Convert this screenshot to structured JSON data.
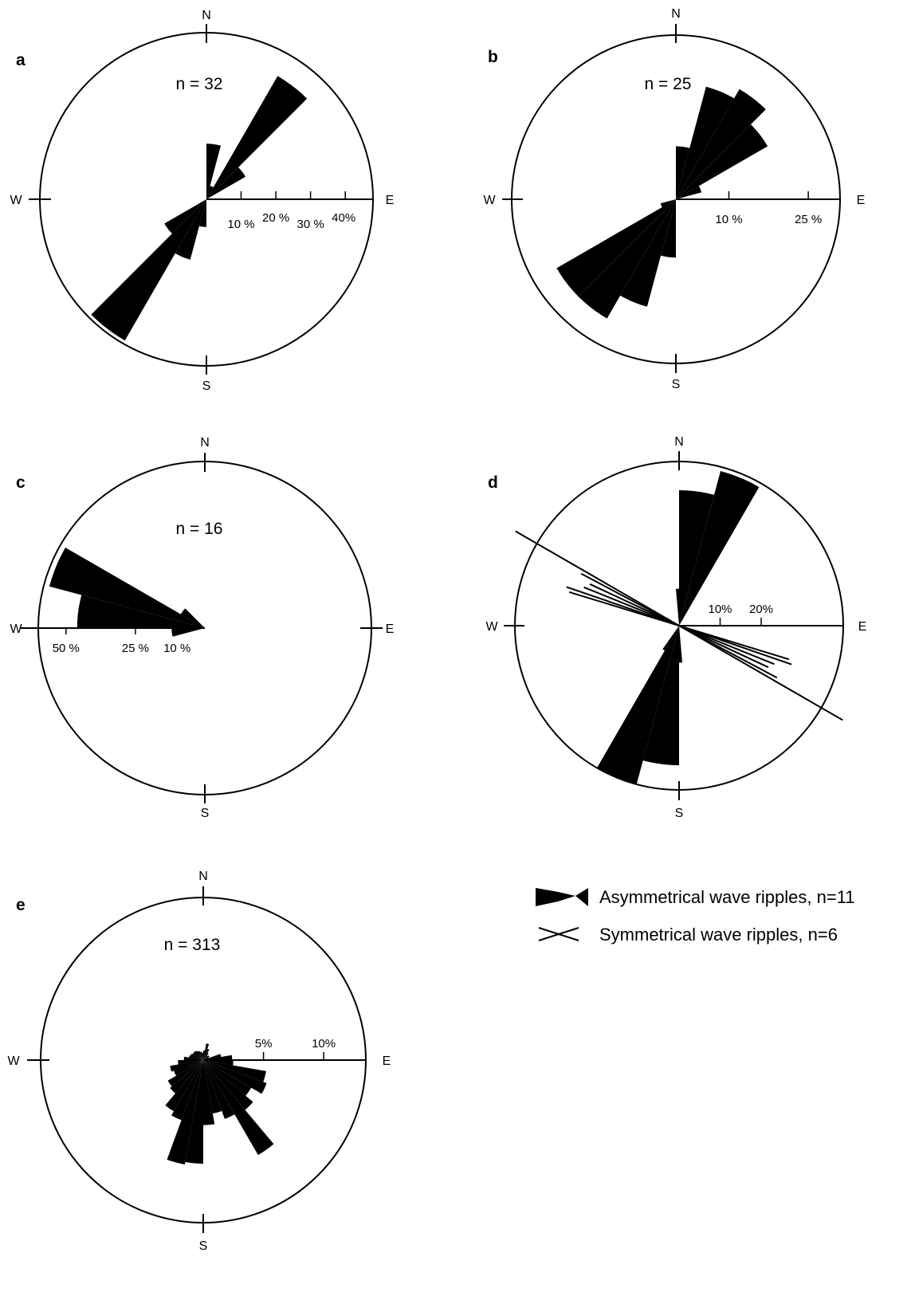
{
  "compass": {
    "north": "N",
    "south": "S",
    "east": "E",
    "west": "W"
  },
  "legend": {
    "asymmetrical": "Asymmetrical wave ripples, n=11",
    "symmetrical": "Symmetrical wave ripples, n=6"
  },
  "colors": {
    "fill": "#000000",
    "background": "#ffffff"
  },
  "chart_data": [
    {
      "type": "rose",
      "panel": "a",
      "count_label": "n = 32",
      "scale_direction": "E",
      "max_percent": 48,
      "scale_ticks": [
        {
          "value": 10,
          "label": "10 %"
        },
        {
          "value": 20,
          "label": "20 %"
        },
        {
          "value": 30,
          "label": "30 %"
        },
        {
          "value": 40,
          "label": "40%"
        }
      ],
      "petals": [
        {
          "from": 30,
          "to": 45,
          "percent": 41
        },
        {
          "from": 45,
          "to": 60,
          "percent": 13
        },
        {
          "from": 0,
          "to": 15,
          "percent": 16
        },
        {
          "from": 15,
          "to": 30,
          "percent": 4
        },
        {
          "from": 195,
          "to": 210,
          "percent": 18
        },
        {
          "from": 210,
          "to": 225,
          "percent": 47
        },
        {
          "from": 225,
          "to": 240,
          "percent": 14
        },
        {
          "from": 180,
          "to": 195,
          "percent": 8
        }
      ]
    },
    {
      "type": "rose",
      "panel": "b",
      "count_label": "n = 25",
      "scale_direction": "E",
      "max_percent": 31,
      "scale_ticks": [
        {
          "value": 10,
          "label": "10 %"
        },
        {
          "value": 25,
          "label": "25 %"
        }
      ],
      "petals": [
        {
          "from": 15,
          "to": 30,
          "percent": 22
        },
        {
          "from": 30,
          "to": 45,
          "percent": 24
        },
        {
          "from": 45,
          "to": 60,
          "percent": 20
        },
        {
          "from": 60,
          "to": 75,
          "percent": 5
        },
        {
          "from": 0,
          "to": 15,
          "percent": 10
        },
        {
          "from": 195,
          "to": 210,
          "percent": 21
        },
        {
          "from": 210,
          "to": 225,
          "percent": 26
        },
        {
          "from": 225,
          "to": 240,
          "percent": 26
        },
        {
          "from": 240,
          "to": 255,
          "percent": 3
        },
        {
          "from": 180,
          "to": 195,
          "percent": 11
        }
      ]
    },
    {
      "type": "rose",
      "panel": "c",
      "count_label": "n = 16",
      "scale_direction": "W",
      "max_percent": 60,
      "scale_ticks": [
        {
          "value": 50,
          "label": "50 %"
        },
        {
          "value": 25,
          "label": "25 %"
        },
        {
          "value": 10,
          "label": "10 %"
        }
      ],
      "petals": [
        {
          "from": 285,
          "to": 300,
          "percent": 58
        },
        {
          "from": 270,
          "to": 285,
          "percent": 46
        },
        {
          "from": 255,
          "to": 270,
          "percent": 12
        },
        {
          "from": 300,
          "to": 315,
          "percent": 10
        }
      ]
    },
    {
      "type": "rose",
      "panel": "d",
      "count_label": "",
      "scale_direction": "E",
      "max_percent": 40,
      "scale_ticks": [
        {
          "value": 10,
          "label": "10%"
        },
        {
          "value": 20,
          "label": "20%"
        }
      ],
      "petals": [
        {
          "from": 15,
          "to": 30,
          "percent": 39
        },
        {
          "from": 0,
          "to": 15,
          "percent": 33
        },
        {
          "from": 355,
          "to": 360,
          "percent": 9
        },
        {
          "from": 20,
          "to": 25,
          "percent": 10
        },
        {
          "from": 195,
          "to": 210,
          "percent": 40
        },
        {
          "from": 180,
          "to": 195,
          "percent": 34
        },
        {
          "from": 210,
          "to": 215,
          "percent": 7
        },
        {
          "from": 175,
          "to": 180,
          "percent": 9
        }
      ],
      "lines": [
        {
          "azimuth": 120,
          "percent": 46
        },
        {
          "azimuth": 118,
          "percent": 27
        },
        {
          "azimuth": 115,
          "percent": 24
        },
        {
          "azimuth": 112,
          "percent": 25
        },
        {
          "azimuth": 109,
          "percent": 29
        },
        {
          "azimuth": 107,
          "percent": 28
        }
      ]
    },
    {
      "type": "rose",
      "panel": "e",
      "count_label": "n = 313",
      "scale_direction": "E",
      "max_percent": 13.5,
      "scale_ticks": [
        {
          "value": 5,
          "label": "5%"
        },
        {
          "value": 10,
          "label": "10%"
        }
      ],
      "petals": [
        {
          "from": 0,
          "to": 10,
          "percent": 0.8
        },
        {
          "from": 10,
          "to": 20,
          "percent": 1.4
        },
        {
          "from": 20,
          "to": 30,
          "percent": 1.0
        },
        {
          "from": 30,
          "to": 40,
          "percent": 0.7
        },
        {
          "from": 40,
          "to": 50,
          "percent": 0.5
        },
        {
          "from": 50,
          "to": 60,
          "percent": 0.6
        },
        {
          "from": 60,
          "to": 70,
          "percent": 0.5
        },
        {
          "from": 70,
          "to": 80,
          "percent": 1.5
        },
        {
          "from": 80,
          "to": 90,
          "percent": 2.4
        },
        {
          "from": 90,
          "to": 100,
          "percent": 2.5
        },
        {
          "from": 100,
          "to": 110,
          "percent": 5.3
        },
        {
          "from": 110,
          "to": 120,
          "percent": 5.6
        },
        {
          "from": 120,
          "to": 130,
          "percent": 4.6
        },
        {
          "from": 130,
          "to": 140,
          "percent": 5.4
        },
        {
          "from": 140,
          "to": 150,
          "percent": 9.1
        },
        {
          "from": 150,
          "to": 160,
          "percent": 5.2
        },
        {
          "from": 160,
          "to": 170,
          "percent": 4.5
        },
        {
          "from": 170,
          "to": 180,
          "percent": 5.4
        },
        {
          "from": 180,
          "to": 190,
          "percent": 8.6
        },
        {
          "from": 190,
          "to": 200,
          "percent": 8.8
        },
        {
          "from": 200,
          "to": 210,
          "percent": 5.3
        },
        {
          "from": 210,
          "to": 220,
          "percent": 4.9
        },
        {
          "from": 220,
          "to": 230,
          "percent": 3.6
        },
        {
          "from": 230,
          "to": 240,
          "percent": 3.4
        },
        {
          "from": 240,
          "to": 250,
          "percent": 2.6
        },
        {
          "from": 250,
          "to": 260,
          "percent": 2.8
        },
        {
          "from": 260,
          "to": 270,
          "percent": 2.1
        },
        {
          "from": 270,
          "to": 280,
          "percent": 1.6
        },
        {
          "from": 280,
          "to": 290,
          "percent": 1.2
        },
        {
          "from": 290,
          "to": 300,
          "percent": 1.1
        },
        {
          "from": 300,
          "to": 310,
          "percent": 1.0
        },
        {
          "from": 310,
          "to": 320,
          "percent": 1.0
        },
        {
          "from": 320,
          "to": 330,
          "percent": 0.9
        },
        {
          "from": 330,
          "to": 340,
          "percent": 0.8
        },
        {
          "from": 340,
          "to": 350,
          "percent": 0.7
        },
        {
          "from": 350,
          "to": 360,
          "percent": 0.6
        }
      ]
    }
  ]
}
